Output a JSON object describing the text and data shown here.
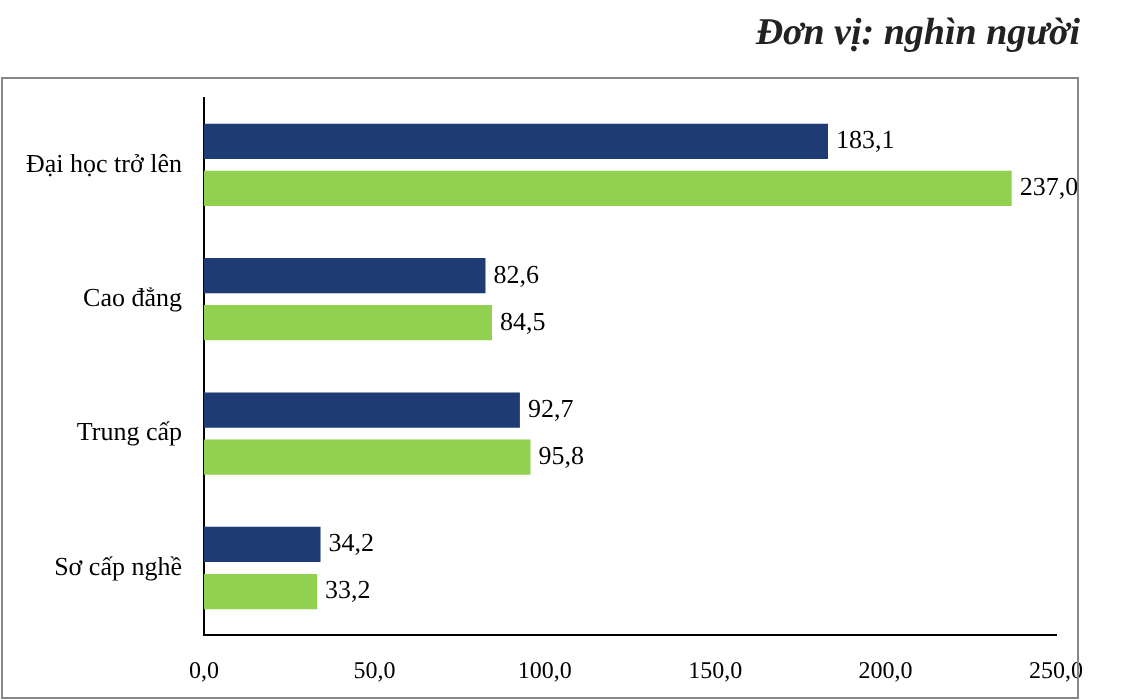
{
  "chart_data": {
    "type": "bar",
    "orientation": "horizontal",
    "annotations": [
      "Đơn vị: nghìn người"
    ],
    "categories": [
      "Đại học trở lên",
      "Cao đẳng",
      "Trung cấp",
      "Sơ cấp nghề"
    ],
    "series": [
      {
        "color": "#1f3b73",
        "values": [
          183.1,
          82.6,
          92.7,
          34.2
        ],
        "value_labels": [
          "183,1",
          "82,6",
          "92,7",
          "34,2"
        ]
      },
      {
        "color": "#92d050",
        "values": [
          237.0,
          84.5,
          95.8,
          33.2
        ],
        "value_labels": [
          "237,0",
          "84,5",
          "95,8",
          "33,2"
        ]
      }
    ],
    "xlim": [
      0,
      250
    ],
    "xticks": [
      {
        "value": 0,
        "label": "0,0"
      },
      {
        "value": 50,
        "label": "50,0"
      },
      {
        "value": 100,
        "label": "100,0"
      },
      {
        "value": 150,
        "label": "150,0"
      },
      {
        "value": 200,
        "label": "200,0"
      },
      {
        "value": 250,
        "label": "250,0"
      }
    ],
    "grid": false,
    "legend": false
  }
}
